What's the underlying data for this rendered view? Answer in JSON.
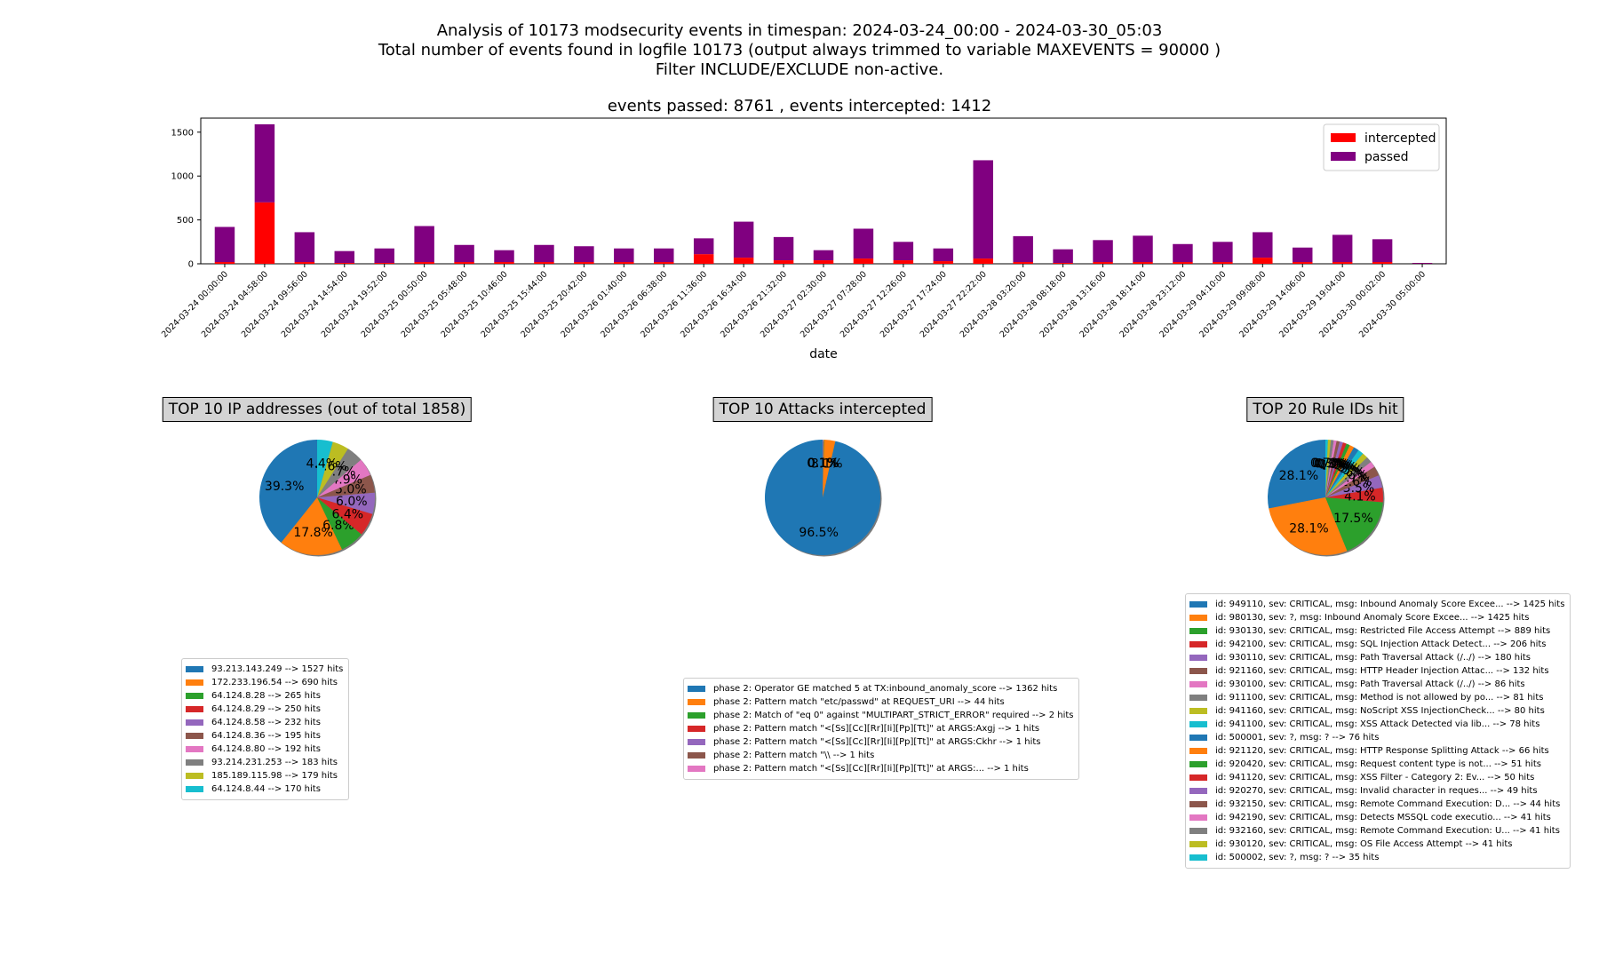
{
  "header": {
    "line1": "Analysis of 10173 modsecurity events in timespan: 2024-03-24_00:00 - 2024-03-30_05:03",
    "line2": "Total number of events found in logfile 10173 (output always trimmed to variable MAXEVENTS = 90000 )",
    "line3": "Filter INCLUDE/EXCLUDE non-active."
  },
  "chart_data": [
    {
      "type": "bar",
      "stacked": true,
      "title": "events passed: 8761 , events intercepted: 1412",
      "xlabel": "date",
      "ylabel": "",
      "ylim": [
        0,
        1660
      ],
      "yticks": [
        0,
        500,
        1000,
        1500
      ],
      "grid": false,
      "legend_position": "top-right",
      "categories": [
        "2024-03-24 00:00:00",
        "2024-03-24 04:58:00",
        "2024-03-24 09:56:00",
        "2024-03-24 14:54:00",
        "2024-03-24 19:52:00",
        "2024-03-25 00:50:00",
        "2024-03-25 05:48:00",
        "2024-03-25 10:46:00",
        "2024-03-25 15:44:00",
        "2024-03-25 20:42:00",
        "2024-03-26 01:40:00",
        "2024-03-26 06:38:00",
        "2024-03-26 11:36:00",
        "2024-03-26 16:34:00",
        "2024-03-26 21:32:00",
        "2024-03-27 02:30:00",
        "2024-03-27 07:28:00",
        "2024-03-27 12:26:00",
        "2024-03-27 17:24:00",
        "2024-03-27 22:22:00",
        "2024-03-28 03:20:00",
        "2024-03-28 08:18:00",
        "2024-03-28 13:16:00",
        "2024-03-28 18:14:00",
        "2024-03-28 23:12:00",
        "2024-03-29 04:10:00",
        "2024-03-29 09:08:00",
        "2024-03-29 14:06:00",
        "2024-03-29 19:04:00",
        "2024-03-30 00:02:00",
        "2024-03-30 05:00:00"
      ],
      "series": [
        {
          "name": "intercepted",
          "color": "#ff0000",
          "values": [
            20,
            700,
            20,
            10,
            10,
            20,
            20,
            20,
            20,
            20,
            20,
            20,
            110,
            70,
            40,
            40,
            60,
            40,
            30,
            60,
            20,
            10,
            20,
            20,
            20,
            20,
            70,
            20,
            20,
            20,
            2
          ]
        },
        {
          "name": "passed",
          "color": "#800080",
          "values": [
            400,
            890,
            340,
            135,
            165,
            410,
            195,
            135,
            195,
            180,
            155,
            155,
            180,
            410,
            265,
            115,
            340,
            210,
            145,
            1120,
            295,
            155,
            250,
            300,
            205,
            230,
            290,
            165,
            310,
            260,
            8
          ]
        }
      ]
    },
    {
      "type": "pie",
      "title": "TOP 10 IP addresses (out of total 1858)",
      "labels": [
        "93.213.143.249 --> 1527 hits",
        "172.233.196.54 --> 690 hits",
        "64.124.8.28 --> 265 hits",
        "64.124.8.29 --> 250 hits",
        "64.124.8.58 --> 232 hits",
        "64.124.8.36 --> 195 hits",
        "64.124.8.80 --> 192 hits",
        "93.214.231.253 --> 183 hits",
        "185.189.115.98 --> 179 hits",
        "64.124.8.44 --> 170 hits"
      ],
      "values": [
        1527,
        690,
        265,
        250,
        232,
        195,
        192,
        183,
        179,
        170
      ],
      "pct_labels": [
        "39.3%",
        "17.8%",
        "6.8%",
        "6.4%",
        "6.0%",
        "5.0%",
        "4.9%",
        "4.7%",
        "4.6%",
        "4.4%"
      ]
    },
    {
      "type": "pie",
      "title": "TOP 10 Attacks intercepted",
      "labels": [
        "phase 2: Operator GE matched 5 at TX:inbound_anomaly_score --> 1362 hits",
        "phase 2: Pattern match \"etc/passwd\" at REQUEST_URI --> 44 hits",
        "phase 2: Match of \"eq 0\" against \"MULTIPART_STRICT_ERROR\" required --> 2 hits",
        "phase 2: Pattern match \"<[Ss][Cc][Rr][Ii][Pp][Tt]\" at ARGS:Axgj --> 1 hits",
        "phase 2: Pattern match \"<[Ss][Cc][Rr][Ii][Pp][Tt]\" at ARGS:Ckhr --> 1 hits",
        "phase 2: Pattern match \"\\\\ --> 1 hits",
        "phase 2: Pattern match \"<[Ss][Cc][Rr][Ii][Pp][Tt]\" at ARGS:... --> 1 hits"
      ],
      "values": [
        1362,
        44,
        2,
        1,
        1,
        1,
        1
      ],
      "pct_labels": [
        "96.5%",
        "3.1%",
        "0.1%",
        "0.1%",
        "0.1%",
        "0.1%",
        "0.1%"
      ]
    },
    {
      "type": "pie",
      "title": "TOP 20 Rule IDs hit",
      "labels": [
        "id: 949110, sev: CRITICAL, msg: Inbound Anomaly Score Excee... --> 1425 hits",
        "id: 980130, sev: ?, msg: Inbound Anomaly Score Excee... --> 1425 hits",
        "id: 930130, sev: CRITICAL, msg: Restricted File Access Attempt --> 889 hits",
        "id: 942100, sev: CRITICAL, msg: SQL Injection Attack Detect... --> 206 hits",
        "id: 930110, sev: CRITICAL, msg: Path Traversal Attack (/../) --> 180 hits",
        "id: 921160, sev: CRITICAL, msg: HTTP Header Injection Attac... --> 132 hits",
        "id: 930100, sev: CRITICAL, msg: Path Traversal Attack (/../) --> 86 hits",
        "id: 911100, sev: CRITICAL, msg: Method is not allowed by po... --> 81 hits",
        "id: 941160, sev: CRITICAL, msg: NoScript XSS InjectionCheck... --> 80 hits",
        "id: 941100, sev: CRITICAL, msg: XSS Attack Detected via lib... --> 78 hits",
        "id: 500001, sev: ?, msg: ? --> 76 hits",
        "id: 921120, sev: CRITICAL, msg: HTTP Response Splitting Attack --> 66 hits",
        "id: 920420, sev: CRITICAL, msg: Request content type is not... --> 51 hits",
        "id: 941120, sev: CRITICAL, msg: XSS Filter - Category 2: Ev... --> 50 hits",
        "id: 920270, sev: CRITICAL, msg: Invalid character in reques... --> 49 hits",
        "id: 932150, sev: CRITICAL, msg: Remote Command Execution: D... --> 44 hits",
        "id: 942190, sev: CRITICAL, msg: Detects MSSQL code executio... --> 41 hits",
        "id: 932160, sev: CRITICAL, msg: Remote Command Execution: U... --> 41 hits",
        "id: 930120, sev: CRITICAL, msg: OS File Access Attempt --> 41 hits",
        "id: 500002, sev: ?, msg: ? --> 35 hits"
      ],
      "values": [
        1425,
        1425,
        889,
        206,
        180,
        132,
        86,
        81,
        80,
        78,
        76,
        66,
        51,
        50,
        49,
        44,
        41,
        41,
        41,
        35
      ],
      "pct_labels": [
        "28.1%",
        "28.1%",
        "17.5%",
        "4.1%",
        "3.5%",
        "2.6%",
        "1.7%",
        "1.6%",
        "1.6%",
        "1.5%",
        "1.5%",
        "1.3%",
        "1.0%",
        "1.0%",
        "1.0%",
        "0.9%",
        "0.8%",
        "0.8%",
        "0.8%",
        "0.7%"
      ]
    }
  ],
  "colors": [
    "#1f77b4",
    "#ff7f0e",
    "#2ca02c",
    "#d62728",
    "#9467bd",
    "#8c564b",
    "#e377c2",
    "#7f7f7f",
    "#bcbd22",
    "#17becf"
  ]
}
